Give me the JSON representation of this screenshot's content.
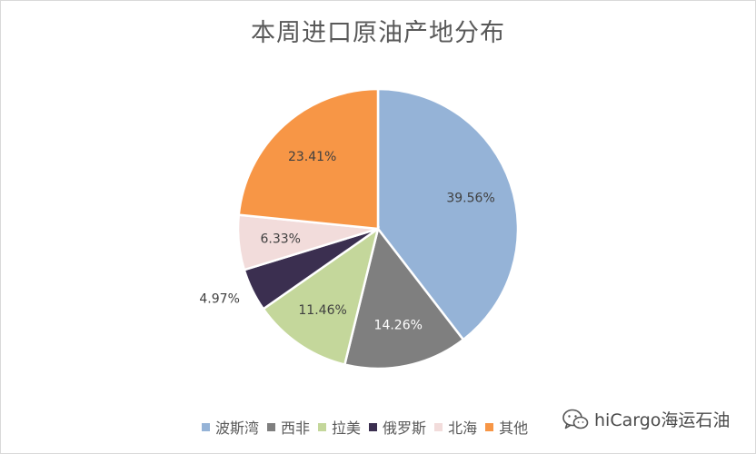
{
  "chart_data": {
    "type": "pie",
    "title": "本周进口原油产地分布",
    "slices": [
      {
        "name": "波斯湾",
        "value": 39.56,
        "label": "39.56%",
        "color": "#95b3d7"
      },
      {
        "name": "西非",
        "value": 14.26,
        "label": "14.26%",
        "color": "#7f7f7f"
      },
      {
        "name": "拉美",
        "value": 11.46,
        "label": "11.46%",
        "color": "#c4d79b"
      },
      {
        "name": "俄罗斯",
        "value": 4.97,
        "label": "4.97%",
        "color": "#3b2f50"
      },
      {
        "name": "北海",
        "value": 6.33,
        "label": "6.33%",
        "color": "#f2dcdb"
      },
      {
        "name": "其他",
        "value": 23.41,
        "label": "23.41%",
        "color": "#f79646"
      }
    ],
    "legend_position": "bottom"
  },
  "watermark": {
    "text": "hiCargo海运石油",
    "icon": "wechat-icon"
  }
}
